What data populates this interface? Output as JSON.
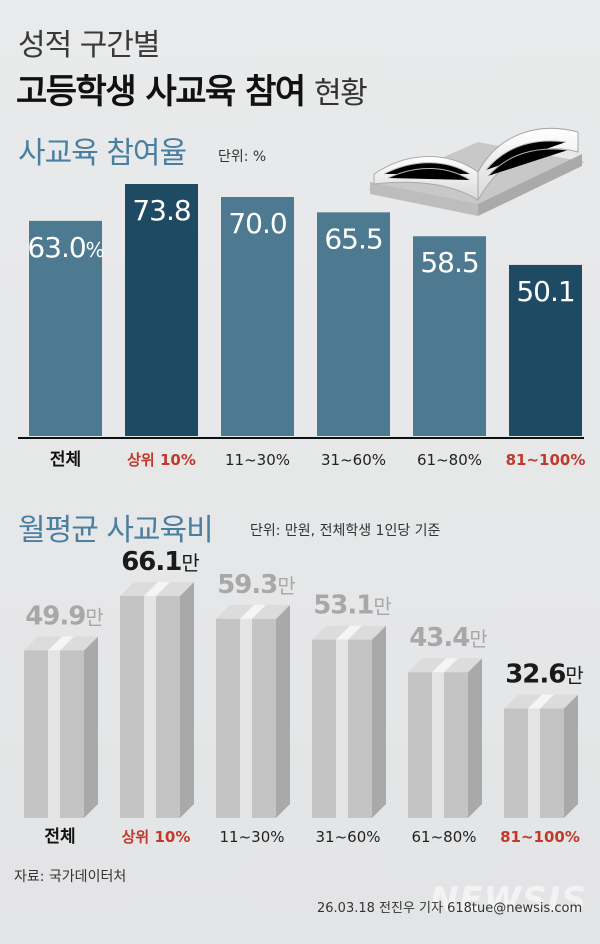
{
  "header": {
    "title_line1": "성적 구간별",
    "title_line2_bold": "고등학생 사교육 참여",
    "title_line2_normal": "현황"
  },
  "section1": {
    "title": "사교육 참여율",
    "unit": "단위: %"
  },
  "section2": {
    "title": "월평균 사교육비",
    "unit": "단위: 만원, 전체학생 1인당 기준"
  },
  "footer": {
    "source": "자료: 국가데이터처",
    "credit": "26.03.18 전진우 기자 618tue@newsis.com",
    "watermark": "NEWSIS"
  },
  "colors": {
    "bar_light": "#4d7a91",
    "bar_dark": "#1e4a63",
    "red_label": "#c0392b",
    "section_title": "#4a7fa0"
  },
  "chart_data": [
    {
      "type": "bar",
      "categories": [
        "전체",
        "상위 10%",
        "11~30%",
        "31~60%",
        "61~80%",
        "81~100%"
      ],
      "values": [
        63.0,
        73.8,
        70.0,
        65.5,
        58.5,
        50.1
      ],
      "value_labels": [
        "63.0",
        "73.8",
        "70.0",
        "65.5",
        "58.5",
        "50.1"
      ],
      "value_suffix_first": "%",
      "title": "사교육 참여율",
      "ylabel": "단위: %",
      "highlight": [
        false,
        true,
        false,
        false,
        false,
        true
      ],
      "ylim": [
        0,
        80
      ]
    },
    {
      "type": "bar",
      "categories": [
        "전체",
        "상위 10%",
        "11~30%",
        "31~60%",
        "61~80%",
        "81~100%"
      ],
      "values": [
        49.9,
        66.1,
        59.3,
        53.1,
        43.4,
        32.6
      ],
      "value_labels": [
        "49.9",
        "66.1",
        "59.3",
        "53.1",
        "43.4",
        "32.6"
      ],
      "value_suffix": "만",
      "title": "월평균 사교육비",
      "ylabel": "단위: 만원, 전체학생 1인당 기준",
      "highlight": [
        false,
        true,
        false,
        false,
        false,
        true
      ],
      "ylim": [
        0,
        70
      ]
    }
  ]
}
